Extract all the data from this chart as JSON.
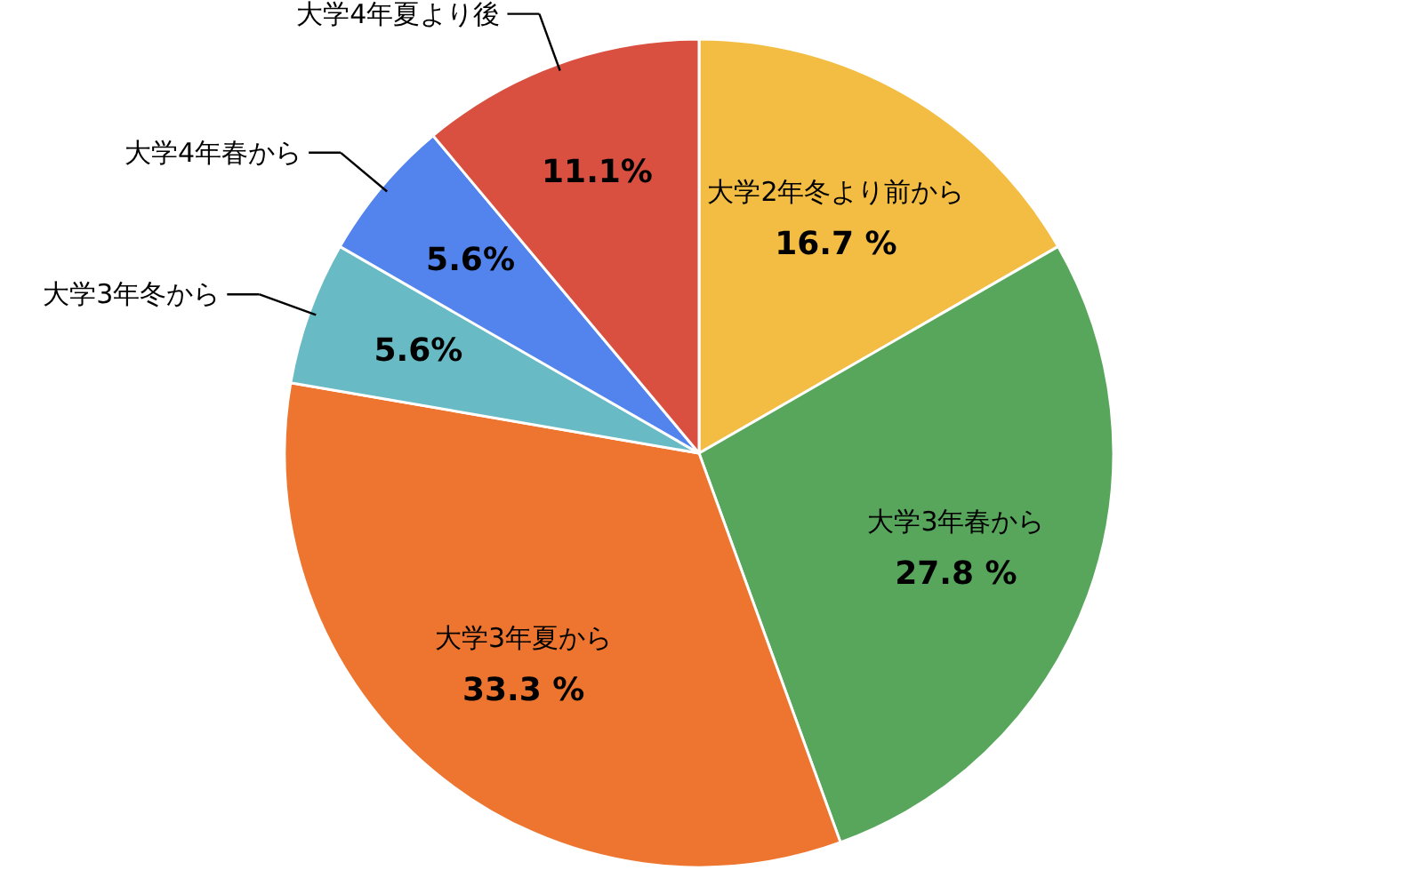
{
  "chart_data": {
    "type": "pie",
    "categories": [
      "大学2年冬より前から",
      "大学3年春から",
      "大学3年夏から",
      "大学3年冬から",
      "大学4年春から",
      "大学4年夏より後"
    ],
    "values": [
      16.7,
      27.8,
      33.3,
      5.6,
      5.6,
      11.1
    ],
    "colors": [
      "#f2bd42",
      "#58a65c",
      "#ed752f",
      "#68bbc4",
      "#5383ec",
      "#d95040"
    ],
    "value_labels": [
      "16.7 %",
      "27.8 %",
      "33.3 %",
      "5.6%",
      "5.6%",
      "11.1%"
    ]
  }
}
